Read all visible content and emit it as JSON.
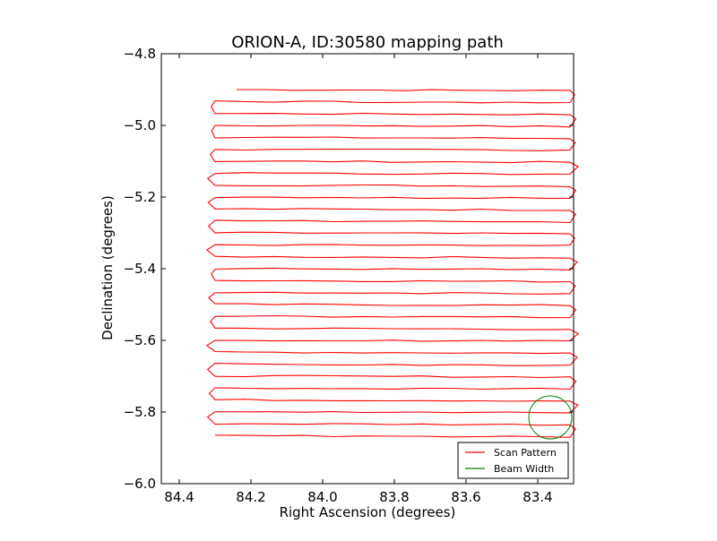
{
  "chart_data": {
    "type": "line",
    "title": "ORION-A, ID:30580 mapping path",
    "xlabel": "Right Ascension (degrees)",
    "ylabel": "Declination (degrees)",
    "xlim": [
      84.45,
      83.3
    ],
    "ylim": [
      -6.0,
      -4.8
    ],
    "x_ticks": [
      84.4,
      84.2,
      84.0,
      83.8,
      83.6,
      83.4
    ],
    "x_tick_labels": [
      "84.4",
      "84.2",
      "84.0",
      "83.8",
      "83.6",
      "83.4"
    ],
    "y_ticks": [
      -4.8,
      -5.0,
      -5.2,
      -5.4,
      -5.6,
      -5.8,
      -6.0
    ],
    "y_tick_labels": [
      "−4.8",
      "−5.0",
      "−5.2",
      "−5.4",
      "−5.6",
      "−5.8",
      "−6.0"
    ],
    "grid": false,
    "legend_position": "lower-right",
    "series": [
      {
        "name": "Scan Pattern",
        "color": "#ff0000",
        "scan": {
          "ra_start": 84.24,
          "ra_west": 84.3,
          "ra_east": 83.31,
          "dec_start": -4.9,
          "dec_step": 0.0333,
          "num_legs": 30
        }
      },
      {
        "name": "Beam Width",
        "color": "#008000",
        "circle": {
          "ra_center": 83.365,
          "dec_center": -5.815,
          "radius_deg": 0.06
        }
      }
    ]
  }
}
